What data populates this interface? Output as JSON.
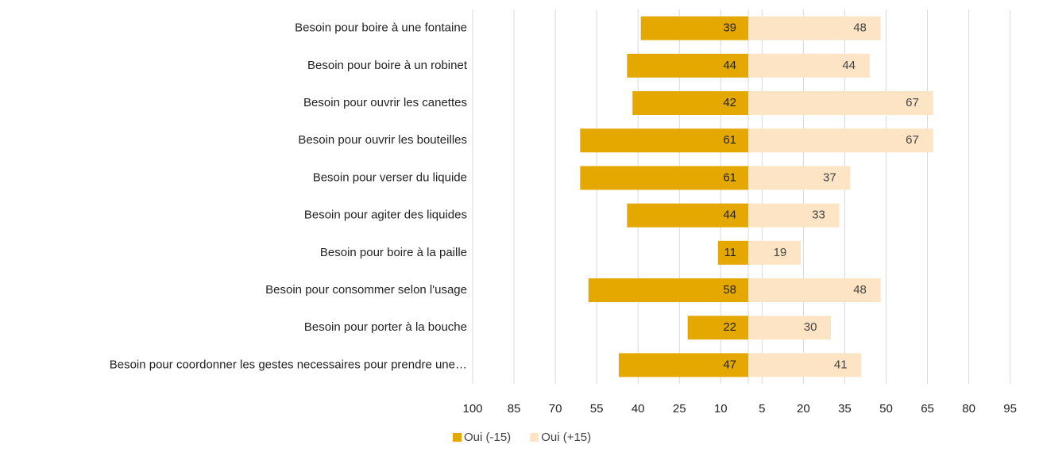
{
  "chart_data": {
    "type": "diverging-bar",
    "categories": [
      "Besoin pour boire à une fontaine",
      "Besoin pour boire à un robinet",
      "Besoin pour ouvrir les canettes",
      "Besoin pour ouvrir les bouteilles",
      "Besoin pour verser du liquide",
      "Besoin pour agiter des liquides",
      "Besoin pour boire à la paille",
      "Besoin pour consommer selon l'usage",
      "Besoin pour porter à la bouche",
      "Besoin pour coordonner les gestes necessaires pour prendre une…"
    ],
    "series": [
      {
        "name": "Oui (-15)",
        "color": "#e5a800",
        "direction": "left",
        "values": [
          39,
          44,
          42,
          61,
          61,
          44,
          11,
          58,
          22,
          47
        ]
      },
      {
        "name": "Oui (+15)",
        "color": "#fde4c4",
        "direction": "right",
        "values": [
          48,
          44,
          67,
          67,
          37,
          33,
          19,
          48,
          30,
          41
        ]
      }
    ],
    "xlim_left": [
      0,
      100
    ],
    "xticks_left": [
      100,
      85,
      70,
      55,
      40,
      25,
      10
    ],
    "xlim_right": [
      0,
      95
    ],
    "xticks_right": [
      5,
      20,
      35,
      50,
      65,
      80,
      95
    ],
    "grid": true,
    "legend": "bottom"
  }
}
